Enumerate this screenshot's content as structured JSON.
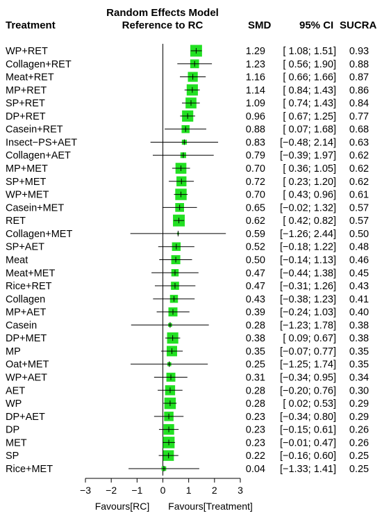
{
  "chart_data": {
    "type": "forest",
    "title_line1": "Random Effects Model",
    "title_line2": "Reference to RC",
    "columns": {
      "treatment": "Treatment",
      "smd": "SMD",
      "ci": "95% CI",
      "sucra": "SUCRA"
    },
    "x_axis": {
      "range": [
        -3,
        3
      ],
      "ticks": [
        -3,
        -2,
        -1,
        0,
        1,
        2,
        3
      ],
      "tick_labels": [
        "−3",
        "−2",
        "−1",
        "0",
        "1",
        "2",
        "3"
      ],
      "left_label": "Favours[RC]",
      "right_label": "Favours[Treatment]",
      "reference_line": 0
    },
    "marker_color": "#22e022",
    "rows": [
      {
        "treatment": "WP+RET",
        "smd": "1.29",
        "ci": "[ 1.08; 1.51]",
        "sucra": "0.93",
        "est": 1.29,
        "lo": 1.08,
        "hi": 1.51
      },
      {
        "treatment": "Collagen+RET",
        "smd": "1.23",
        "ci": "[ 0.56; 1.90]",
        "sucra": "0.88",
        "est": 1.23,
        "lo": 0.56,
        "hi": 1.9
      },
      {
        "treatment": "Meat+RET",
        "smd": "1.16",
        "ci": "[ 0.66; 1.66]",
        "sucra": "0.87",
        "est": 1.16,
        "lo": 0.66,
        "hi": 1.66
      },
      {
        "treatment": "MP+RET",
        "smd": "1.14",
        "ci": "[ 0.84; 1.43]",
        "sucra": "0.86",
        "est": 1.14,
        "lo": 0.84,
        "hi": 1.43
      },
      {
        "treatment": "SP+RET",
        "smd": "1.09",
        "ci": "[ 0.74; 1.43]",
        "sucra": "0.84",
        "est": 1.09,
        "lo": 0.74,
        "hi": 1.43
      },
      {
        "treatment": "DP+RET",
        "smd": "0.96",
        "ci": "[ 0.67; 1.25]",
        "sucra": "0.77",
        "est": 0.96,
        "lo": 0.67,
        "hi": 1.25
      },
      {
        "treatment": "Casein+RET",
        "smd": "0.88",
        "ci": "[ 0.07; 1.68]",
        "sucra": "0.68",
        "est": 0.88,
        "lo": 0.07,
        "hi": 1.68
      },
      {
        "treatment": "Insect−PS+AET",
        "smd": "0.83",
        "ci": "[−0.48; 2.14]",
        "sucra": "0.63",
        "est": 0.83,
        "lo": -0.48,
        "hi": 2.14
      },
      {
        "treatment": "Collagen+AET",
        "smd": "0.79",
        "ci": "[−0.39; 1.97]",
        "sucra": "0.62",
        "est": 0.79,
        "lo": -0.39,
        "hi": 1.97
      },
      {
        "treatment": "MP+MET",
        "smd": "0.70",
        "ci": "[ 0.36; 1.05]",
        "sucra": "0.62",
        "est": 0.7,
        "lo": 0.36,
        "hi": 1.05
      },
      {
        "treatment": "SP+MET",
        "smd": "0.72",
        "ci": "[ 0.23; 1.20]",
        "sucra": "0.62",
        "est": 0.72,
        "lo": 0.23,
        "hi": 1.2
      },
      {
        "treatment": "WP+MET",
        "smd": "0.70",
        "ci": "[ 0.43; 0.96]",
        "sucra": "0.61",
        "est": 0.7,
        "lo": 0.43,
        "hi": 0.96
      },
      {
        "treatment": "Casein+MET",
        "smd": "0.65",
        "ci": "[−0.02; 1.32]",
        "sucra": "0.57",
        "est": 0.65,
        "lo": -0.02,
        "hi": 1.32
      },
      {
        "treatment": "RET",
        "smd": "0.62",
        "ci": "[ 0.42; 0.82]",
        "sucra": "0.57",
        "est": 0.62,
        "lo": 0.42,
        "hi": 0.82
      },
      {
        "treatment": "Collagen+MET",
        "smd": "0.59",
        "ci": "[−1.26; 2.44]",
        "sucra": "0.50",
        "est": 0.59,
        "lo": -1.26,
        "hi": 2.44
      },
      {
        "treatment": "SP+AET",
        "smd": "0.52",
        "ci": "[−0.18; 1.22]",
        "sucra": "0.48",
        "est": 0.52,
        "lo": -0.18,
        "hi": 1.22
      },
      {
        "treatment": "Meat",
        "smd": "0.50",
        "ci": "[−0.14; 1.13]",
        "sucra": "0.46",
        "est": 0.5,
        "lo": -0.14,
        "hi": 1.13
      },
      {
        "treatment": "Meat+MET",
        "smd": "0.47",
        "ci": "[−0.44; 1.38]",
        "sucra": "0.45",
        "est": 0.47,
        "lo": -0.44,
        "hi": 1.38
      },
      {
        "treatment": "Rice+RET",
        "smd": "0.47",
        "ci": "[−0.31; 1.26]",
        "sucra": "0.43",
        "est": 0.47,
        "lo": -0.31,
        "hi": 1.26
      },
      {
        "treatment": "Collagen",
        "smd": "0.43",
        "ci": "[−0.38; 1.23]",
        "sucra": "0.41",
        "est": 0.43,
        "lo": -0.38,
        "hi": 1.23
      },
      {
        "treatment": "MP+AET",
        "smd": "0.39",
        "ci": "[−0.24; 1.03]",
        "sucra": "0.40",
        "est": 0.39,
        "lo": -0.24,
        "hi": 1.03
      },
      {
        "treatment": "Casein",
        "smd": "0.28",
        "ci": "[−1.23; 1.78]",
        "sucra": "0.38",
        "est": 0.28,
        "lo": -1.23,
        "hi": 1.78
      },
      {
        "treatment": "DP+MET",
        "smd": "0.38",
        "ci": "[ 0.09; 0.67]",
        "sucra": "0.38",
        "est": 0.38,
        "lo": 0.09,
        "hi": 0.67
      },
      {
        "treatment": "MP",
        "smd": "0.35",
        "ci": "[−0.07; 0.77]",
        "sucra": "0.35",
        "est": 0.35,
        "lo": -0.07,
        "hi": 0.77
      },
      {
        "treatment": "Oat+MET",
        "smd": "0.25",
        "ci": "[−1.25; 1.74]",
        "sucra": "0.35",
        "est": 0.25,
        "lo": -1.25,
        "hi": 1.74
      },
      {
        "treatment": "WP+AET",
        "smd": "0.31",
        "ci": "[−0.34; 0.95]",
        "sucra": "0.34",
        "est": 0.31,
        "lo": -0.34,
        "hi": 0.95
      },
      {
        "treatment": "AET",
        "smd": "0.28",
        "ci": "[−0.20; 0.76]",
        "sucra": "0.30",
        "est": 0.28,
        "lo": -0.2,
        "hi": 0.76
      },
      {
        "treatment": "WP",
        "smd": "0.28",
        "ci": "[ 0.02; 0.53]",
        "sucra": "0.29",
        "est": 0.28,
        "lo": 0.02,
        "hi": 0.53
      },
      {
        "treatment": "DP+AET",
        "smd": "0.23",
        "ci": "[−0.34; 0.80]",
        "sucra": "0.29",
        "est": 0.23,
        "lo": -0.34,
        "hi": 0.8
      },
      {
        "treatment": "DP",
        "smd": "0.23",
        "ci": "[−0.15; 0.61]",
        "sucra": "0.26",
        "est": 0.23,
        "lo": -0.15,
        "hi": 0.61
      },
      {
        "treatment": "MET",
        "smd": "0.23",
        "ci": "[−0.01; 0.47]",
        "sucra": "0.26",
        "est": 0.23,
        "lo": -0.01,
        "hi": 0.47
      },
      {
        "treatment": "SP",
        "smd": "0.22",
        "ci": "[−0.16; 0.60]",
        "sucra": "0.25",
        "est": 0.22,
        "lo": -0.16,
        "hi": 0.6
      },
      {
        "treatment": "Rice+MET",
        "smd": "0.04",
        "ci": "[−1.33; 1.41]",
        "sucra": "0.25",
        "est": 0.04,
        "lo": -1.33,
        "hi": 1.41
      }
    ]
  }
}
